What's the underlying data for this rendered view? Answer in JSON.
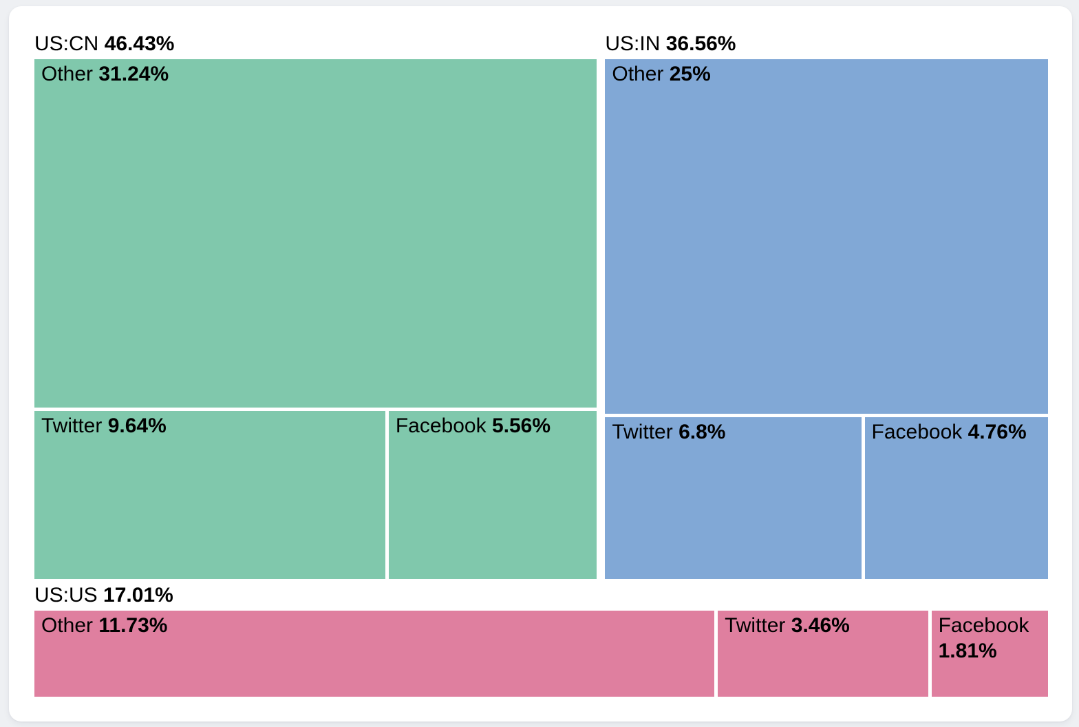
{
  "page": {
    "background_color": "#eef0f3",
    "card_color": "#ffffff"
  },
  "chart_data": {
    "type": "treemap",
    "title": "",
    "legend": "none",
    "label_position": "top-left-inside",
    "group_label_position": "above-group",
    "layout_rows": [
      [
        "US:CN",
        "US:IN"
      ],
      [
        "US:US"
      ]
    ],
    "groups": [
      {
        "name": "US:CN",
        "pct_label": "46.43%",
        "value": 46.43,
        "color": "#80c8ac",
        "children": [
          {
            "name": "Other",
            "pct_label": "31.24%",
            "value": 31.24
          },
          {
            "name": "Twitter",
            "pct_label": "9.64%",
            "value": 9.64
          },
          {
            "name": "Facebook",
            "pct_label": "5.56%",
            "value": 5.56
          }
        ]
      },
      {
        "name": "US:IN",
        "pct_label": "36.56%",
        "value": 36.56,
        "color": "#81a8d6",
        "children": [
          {
            "name": "Other",
            "pct_label": "25%",
            "value": 25
          },
          {
            "name": "Twitter",
            "pct_label": "6.8%",
            "value": 6.8
          },
          {
            "name": "Facebook",
            "pct_label": "4.76%",
            "value": 4.76
          }
        ]
      },
      {
        "name": "US:US",
        "pct_label": "17.01%",
        "value": 17.01,
        "color": "#df7f9f",
        "children": [
          {
            "name": "Other",
            "pct_label": "11.73%",
            "value": 11.73
          },
          {
            "name": "Twitter",
            "pct_label": "3.46%",
            "value": 3.46
          },
          {
            "name": "Facebook",
            "pct_label": "1.81%",
            "value": 1.81
          }
        ]
      }
    ]
  }
}
